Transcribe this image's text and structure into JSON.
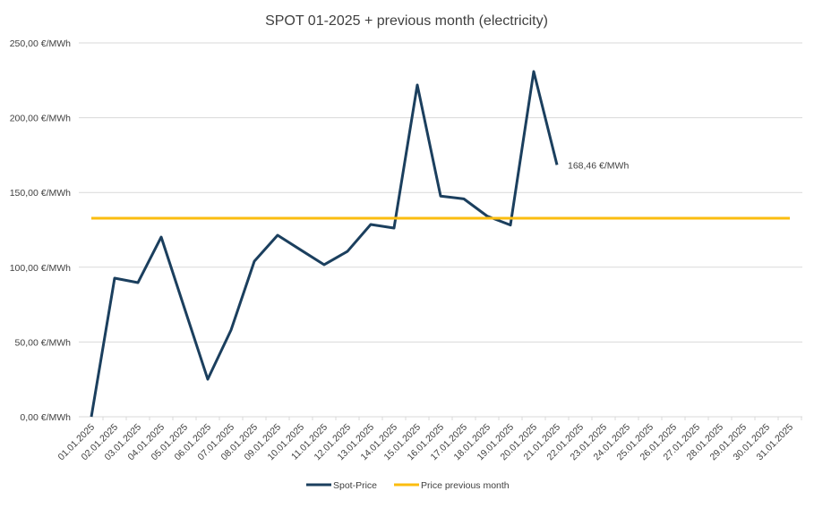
{
  "chart_data": {
    "type": "line",
    "title": "SPOT 01-2025 + previous month (electricity)",
    "xlabel": "",
    "ylabel": "",
    "ylim": [
      0,
      250
    ],
    "y_ticks": [
      0,
      50,
      100,
      150,
      200,
      250
    ],
    "y_tick_labels": [
      "0,00 €/MWh",
      "50,00 €/MWh",
      "100,00 €/MWh",
      "150,00 €/MWh",
      "200,00 €/MWh",
      "250,00 €/MWh"
    ],
    "grid": true,
    "legend_position": "bottom",
    "categories": [
      "01.01.2025",
      "02.01.2025",
      "03.01.2025",
      "04.01.2025",
      "05.01.2025",
      "06.01.2025",
      "07.01.2025",
      "08.01.2025",
      "09.01.2025",
      "10.01.2025",
      "11.01.2025",
      "12.01.2025",
      "13.01.2025",
      "14.01.2025",
      "15.01.2025",
      "16.01.2025",
      "17.01.2025",
      "18.01.2025",
      "19.01.2025",
      "20.01.2025",
      "21.01.2025",
      "22.01.2025",
      "23.01.2025",
      "24.01.2025",
      "25.01.2025",
      "26.01.2025",
      "27.01.2025",
      "28.01.2025",
      "29.01.2025",
      "30.01.2025",
      "31.01.2025"
    ],
    "series": [
      {
        "name": "Spot-Price",
        "color": "#1b3f5e",
        "values": [
          0,
          92.7,
          89.7,
          120.2,
          72.6,
          25.1,
          58.0,
          104.0,
          121.4,
          111.5,
          101.7,
          110.6,
          128.6,
          126.2,
          221.9,
          147.6,
          145.7,
          134.2,
          128.2,
          230.9,
          168.46,
          null,
          null,
          null,
          null,
          null,
          null,
          null,
          null,
          null,
          null
        ]
      },
      {
        "name": "Price previous month",
        "color": "#fbbd0f",
        "values": [
          132.8,
          132.8,
          132.8,
          132.8,
          132.8,
          132.8,
          132.8,
          132.8,
          132.8,
          132.8,
          132.8,
          132.8,
          132.8,
          132.8,
          132.8,
          132.8,
          132.8,
          132.8,
          132.8,
          132.8,
          132.8,
          132.8,
          132.8,
          132.8,
          132.8,
          132.8,
          132.8,
          132.8,
          132.8,
          132.8,
          132.8
        ]
      }
    ],
    "annotations": [
      {
        "category": "21.01.2025",
        "text": "168,46 €/MWh"
      }
    ]
  }
}
